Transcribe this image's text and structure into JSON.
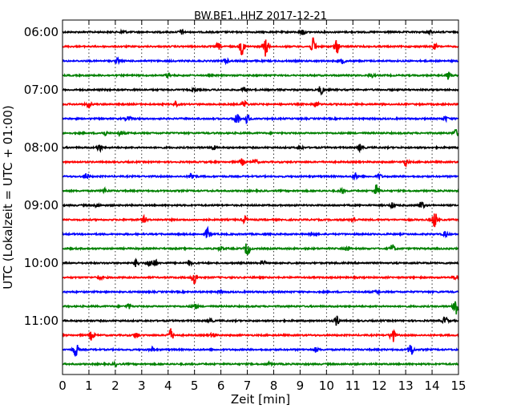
{
  "chart_data": {
    "type": "line",
    "title": "BW.BE1..HHZ 2017-12-21",
    "xlabel": "Zeit  [min]",
    "ylabel": "UTC (Lokalzeit = UTC + 01:00)",
    "xlim": [
      0,
      15
    ],
    "x_ticks": [
      "0",
      "1",
      "2",
      "3",
      "4",
      "5",
      "6",
      "7",
      "8",
      "9",
      "10",
      "11",
      "12",
      "13",
      "14",
      "15"
    ],
    "y_ticks": [
      "06:00",
      "07:00",
      "08:00",
      "09:00",
      "10:00",
      "11:00"
    ],
    "grid": "vertical dotted",
    "trace_colors": [
      "#000000",
      "#ff0000",
      "#0000ff",
      "#008000"
    ],
    "traces": [
      {
        "start": "06:00",
        "events": [
          [
            2.3,
            3
          ],
          [
            4.5,
            3
          ],
          [
            9.1,
            4
          ],
          [
            13.9,
            2
          ]
        ]
      },
      {
        "start": "06:15",
        "events": [
          [
            6.8,
            10
          ],
          [
            7.7,
            12
          ],
          [
            9.5,
            10
          ],
          [
            10.4,
            8
          ],
          [
            5.9,
            4
          ],
          [
            14.1,
            3
          ]
        ]
      },
      {
        "start": "06:30",
        "events": [
          [
            2.1,
            3
          ],
          [
            6.2,
            3
          ],
          [
            10.6,
            3
          ]
        ]
      },
      {
        "start": "06:45",
        "events": [
          [
            4.0,
            3
          ],
          [
            14.6,
            5
          ],
          [
            11.7,
            2
          ]
        ]
      },
      {
        "start": "07:00",
        "events": [
          [
            9.8,
            6
          ],
          [
            6.9,
            3
          ],
          [
            5.0,
            2
          ]
        ]
      },
      {
        "start": "07:15",
        "events": [
          [
            1.0,
            4
          ],
          [
            6.9,
            5
          ],
          [
            9.6,
            4
          ],
          [
            4.3,
            2
          ]
        ]
      },
      {
        "start": "07:30",
        "events": [
          [
            6.6,
            8
          ],
          [
            7.0,
            6
          ],
          [
            2.5,
            3
          ],
          [
            14.5,
            3
          ]
        ]
      },
      {
        "start": "07:45",
        "events": [
          [
            1.6,
            3
          ],
          [
            2.2,
            3
          ],
          [
            14.9,
            4
          ]
        ]
      },
      {
        "start": "08:00",
        "events": [
          [
            1.4,
            4
          ],
          [
            11.3,
            5
          ],
          [
            5.7,
            3
          ],
          [
            9.0,
            3
          ]
        ]
      },
      {
        "start": "08:15",
        "events": [
          [
            6.8,
            4
          ],
          [
            7.3,
            3
          ],
          [
            13.0,
            4
          ]
        ]
      },
      {
        "start": "08:30",
        "events": [
          [
            0.9,
            4
          ],
          [
            4.9,
            5
          ],
          [
            11.1,
            4
          ],
          [
            12.0,
            3
          ]
        ]
      },
      {
        "start": "08:45",
        "events": [
          [
            11.9,
            8
          ],
          [
            1.6,
            3
          ],
          [
            10.6,
            3
          ]
        ]
      },
      {
        "start": "09:00",
        "events": [
          [
            13.6,
            5
          ],
          [
            12.5,
            3
          ],
          [
            1.3,
            2
          ]
        ]
      },
      {
        "start": "09:15",
        "events": [
          [
            14.1,
            10
          ],
          [
            3.1,
            4
          ],
          [
            6.9,
            4
          ],
          [
            11.0,
            3
          ]
        ]
      },
      {
        "start": "09:30",
        "events": [
          [
            5.5,
            7
          ],
          [
            14.5,
            3
          ],
          [
            9.5,
            2
          ]
        ]
      },
      {
        "start": "09:45",
        "events": [
          [
            7.0,
            9
          ],
          [
            12.5,
            5
          ],
          [
            10.8,
            3
          ],
          [
            6.0,
            2
          ]
        ]
      },
      {
        "start": "10:00",
        "events": [
          [
            2.8,
            5
          ],
          [
            3.3,
            5
          ],
          [
            3.5,
            4
          ],
          [
            4.8,
            3
          ],
          [
            7.6,
            3
          ]
        ]
      },
      {
        "start": "10:15",
        "events": [
          [
            5.0,
            9
          ],
          [
            1.4,
            3
          ],
          [
            14.9,
            3
          ]
        ]
      },
      {
        "start": "10:30",
        "events": [
          [
            6.0,
            2
          ],
          [
            11.9,
            2
          ]
        ]
      },
      {
        "start": "10:45",
        "events": [
          [
            14.9,
            14
          ],
          [
            5.0,
            4
          ],
          [
            2.5,
            3
          ]
        ]
      },
      {
        "start": "11:00",
        "events": [
          [
            10.4,
            6
          ],
          [
            14.5,
            5
          ],
          [
            5.6,
            3
          ]
        ]
      },
      {
        "start": "11:15",
        "events": [
          [
            12.5,
            9
          ],
          [
            1.1,
            6
          ],
          [
            4.1,
            8
          ],
          [
            2.8,
            4
          ],
          [
            5.7,
            3
          ]
        ]
      },
      {
        "start": "11:30",
        "events": [
          [
            0.5,
            9
          ],
          [
            13.2,
            8
          ],
          [
            9.6,
            3
          ],
          [
            3.4,
            3
          ]
        ]
      },
      {
        "start": "11:45",
        "events": [
          [
            2.0,
            2
          ],
          [
            7.8,
            2
          ]
        ]
      }
    ]
  }
}
